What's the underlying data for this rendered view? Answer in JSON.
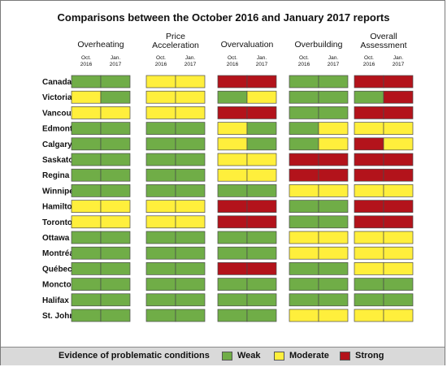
{
  "chart_data": {
    "type": "table",
    "title": "Comparisons between the October 2016 and January 2017 reports",
    "groups": [
      "Overheating",
      "Price\nAcceleration",
      "Overvaluation",
      "Overbuilding",
      "Overall\nAssessment"
    ],
    "subheaders": [
      "Oct.\n2016",
      "Jan.\n2017"
    ],
    "cities": [
      "Canada",
      "Victoria",
      "Vancouver",
      "Edmonton",
      "Calgary",
      "Saskatoon",
      "Regina",
      "Winnipeg",
      "Hamilton",
      "Toronto",
      "Ottawa",
      "Montréal",
      "Québec",
      "Moncton",
      "Halifax",
      "St. John’s"
    ],
    "rows": [
      [
        "W",
        "W",
        "Y",
        "Y",
        "R",
        "R",
        "W",
        "W",
        "R",
        "R"
      ],
      [
        "Y",
        "W",
        "Y",
        "Y",
        "W",
        "Y",
        "W",
        "W",
        "W",
        "R"
      ],
      [
        "Y",
        "Y",
        "Y",
        "Y",
        "R",
        "R",
        "W",
        "W",
        "R",
        "R"
      ],
      [
        "W",
        "W",
        "W",
        "W",
        "Y",
        "W",
        "W",
        "Y",
        "Y",
        "Y"
      ],
      [
        "W",
        "W",
        "W",
        "W",
        "Y",
        "W",
        "W",
        "Y",
        "R",
        "Y"
      ],
      [
        "W",
        "W",
        "W",
        "W",
        "Y",
        "Y",
        "R",
        "R",
        "R",
        "R"
      ],
      [
        "W",
        "W",
        "W",
        "W",
        "Y",
        "Y",
        "R",
        "R",
        "R",
        "R"
      ],
      [
        "W",
        "W",
        "W",
        "W",
        "W",
        "W",
        "Y",
        "Y",
        "Y",
        "Y"
      ],
      [
        "Y",
        "Y",
        "Y",
        "Y",
        "R",
        "R",
        "W",
        "W",
        "R",
        "R"
      ],
      [
        "Y",
        "Y",
        "Y",
        "Y",
        "R",
        "R",
        "W",
        "W",
        "R",
        "R"
      ],
      [
        "W",
        "W",
        "W",
        "W",
        "W",
        "W",
        "Y",
        "Y",
        "Y",
        "Y"
      ],
      [
        "W",
        "W",
        "W",
        "W",
        "W",
        "W",
        "Y",
        "Y",
        "Y",
        "Y"
      ],
      [
        "W",
        "W",
        "W",
        "W",
        "R",
        "R",
        "W",
        "W",
        "Y",
        "Y"
      ],
      [
        "W",
        "W",
        "W",
        "W",
        "W",
        "W",
        "W",
        "W",
        "W",
        "W"
      ],
      [
        "W",
        "W",
        "W",
        "W",
        "W",
        "W",
        "W",
        "W",
        "W",
        "W"
      ],
      [
        "W",
        "W",
        "W",
        "W",
        "W",
        "W",
        "Y",
        "Y",
        "Y",
        "Y"
      ]
    ],
    "legend": {
      "title": "Evidence of problematic conditions",
      "entries": [
        {
          "code": "W",
          "label": "Weak",
          "color": "#70ad47"
        },
        {
          "code": "Y",
          "label": "Moderate",
          "color": "#ffef3c"
        },
        {
          "code": "R",
          "label": "Strong",
          "color": "#b3131b"
        }
      ]
    },
    "grid": false
  }
}
